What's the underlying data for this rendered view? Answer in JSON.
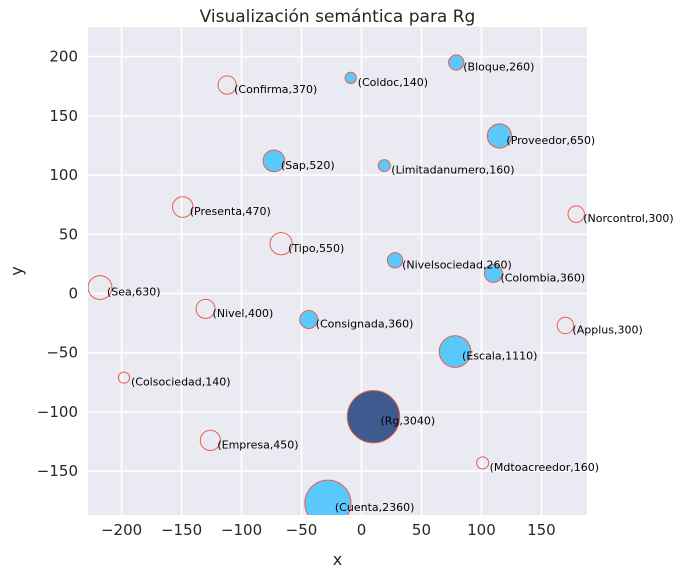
{
  "chart_data": {
    "type": "scatter",
    "title": "Visualización semántica para Rg",
    "xlabel": "x",
    "ylabel": "y",
    "xlim": [
      -228,
      188
    ],
    "ylim": [
      -187,
      225
    ],
    "xticks": [
      -200,
      -150,
      -100,
      -50,
      0,
      50,
      100,
      150
    ],
    "yticks": [
      -150,
      -100,
      -50,
      0,
      50,
      100,
      150,
      200
    ],
    "grid": true,
    "colors": {
      "background": "#eaeaf2",
      "grid": "#ffffff",
      "filled": "#5bc8fb",
      "highlight": "#3f5a8e",
      "edge": "#e8604c"
    },
    "points": [
      {
        "label": "(Bloque,260)",
        "x": 79,
        "y": 195,
        "size": 260,
        "style": "filled"
      },
      {
        "label": "(Coldoc,140)",
        "x": -9,
        "y": 182,
        "size": 140,
        "style": "filled"
      },
      {
        "label": "(Confirma,370)",
        "x": -112,
        "y": 176,
        "size": 370,
        "style": "hollow"
      },
      {
        "label": "(Proveedor,650)",
        "x": 115,
        "y": 133,
        "size": 650,
        "style": "filled"
      },
      {
        "label": "(Sap,520)",
        "x": -73,
        "y": 112,
        "size": 520,
        "style": "filled"
      },
      {
        "label": "(Limitadanumero,160)",
        "x": 19,
        "y": 108,
        "size": 160,
        "style": "filled"
      },
      {
        "label": "(Presenta,470)",
        "x": -149,
        "y": 73,
        "size": 470,
        "style": "hollow"
      },
      {
        "label": "(Norcontrol,300)",
        "x": 179,
        "y": 67,
        "size": 300,
        "style": "hollow"
      },
      {
        "label": "(Tipo,550)",
        "x": -67,
        "y": 42,
        "size": 550,
        "style": "hollow"
      },
      {
        "label": "(Nivelsociedad,260)",
        "x": 28,
        "y": 28,
        "size": 260,
        "style": "filled"
      },
      {
        "label": "(Colombia,360)",
        "x": 110,
        "y": 17,
        "size": 360,
        "style": "filled"
      },
      {
        "label": "(Sea,630)",
        "x": -218,
        "y": 5,
        "size": 630,
        "style": "hollow"
      },
      {
        "label": "(Nivel,400)",
        "x": -130,
        "y": -13,
        "size": 400,
        "style": "hollow"
      },
      {
        "label": "(Consignada,360)",
        "x": -44,
        "y": -22,
        "size": 360,
        "style": "filled"
      },
      {
        "label": "(Applus,300)",
        "x": 170,
        "y": -27,
        "size": 300,
        "style": "hollow"
      },
      {
        "label": "(Escala,1110)",
        "x": 78,
        "y": -49,
        "size": 1110,
        "style": "filled"
      },
      {
        "label": "(Colsociedad,140)",
        "x": -198,
        "y": -71,
        "size": 140,
        "style": "hollow"
      },
      {
        "label": "(Rg,3040)",
        "x": 10,
        "y": -104,
        "size": 3040,
        "style": "highlight"
      },
      {
        "label": "(Empresa,450)",
        "x": -126,
        "y": -124,
        "size": 450,
        "style": "hollow"
      },
      {
        "label": "(Mdtoacreedor,160)",
        "x": 101,
        "y": -143,
        "size": 160,
        "style": "hollow"
      },
      {
        "label": "(Cuenta,2360)",
        "x": -28,
        "y": -177,
        "size": 2360,
        "style": "filled"
      }
    ]
  }
}
